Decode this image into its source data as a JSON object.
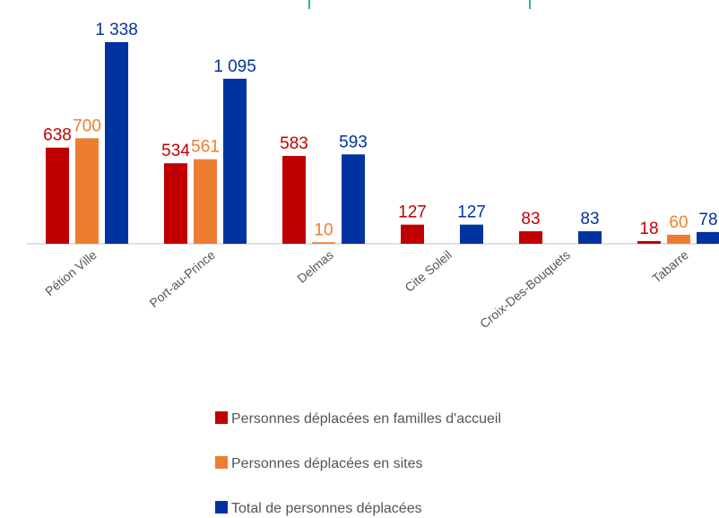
{
  "chart_data": {
    "type": "bar",
    "categories": [
      "Pétion Ville",
      "Port-au-Prince",
      "Delmas",
      "Cite Soleil",
      "Croix-Des-Bouquets",
      "Tabarre"
    ],
    "series": [
      {
        "name": "Personnes déplacées en familles d'accueil",
        "color": "#c00000",
        "values": [
          638,
          534,
          583,
          127,
          83,
          18
        ]
      },
      {
        "name": "Personnes déplacées en sites",
        "color": "#ed7d31",
        "values": [
          700,
          561,
          10,
          null,
          null,
          60
        ]
      },
      {
        "name": "Total de personnes déplacées",
        "color": "#0033a0",
        "values": [
          1338,
          1095,
          593,
          127,
          83,
          78
        ],
        "value_labels": [
          "1 338",
          "1 095",
          "593",
          "127",
          "83",
          "78"
        ]
      }
    ],
    "ylim": [
      0,
      1338
    ]
  }
}
